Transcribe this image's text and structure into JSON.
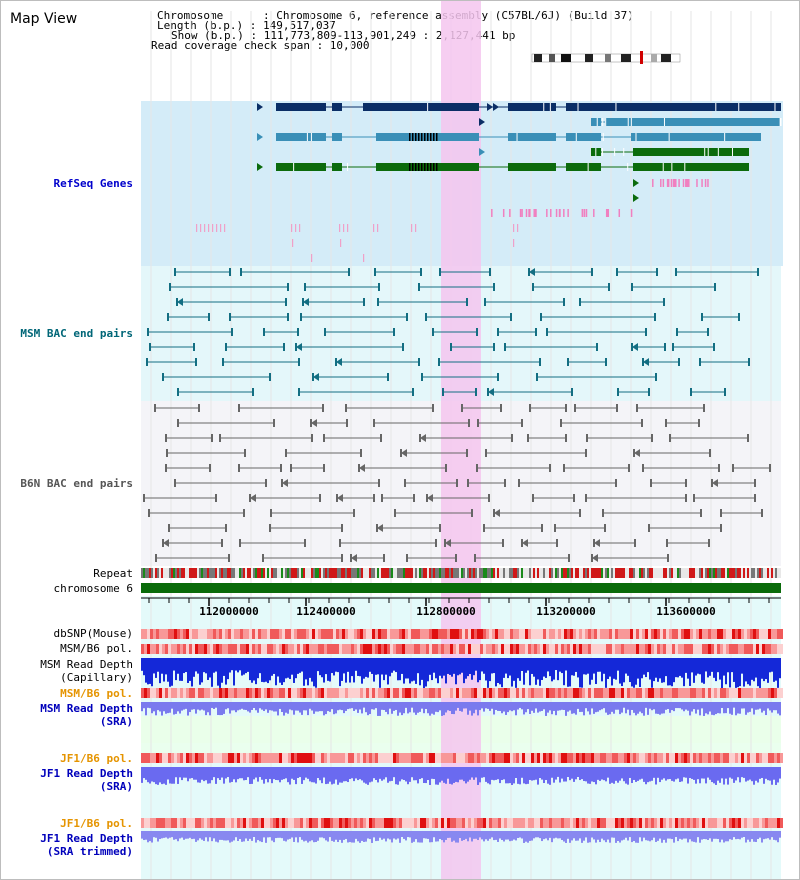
{
  "view_title": "Map View",
  "info": {
    "chromosome": "Chromosome      : Chromosome 6, reference assembly (C57BL/6J) (Build 37)",
    "length": "Length (b.p.) : 149,517,037",
    "show": "Show (b.p.) : 111,773,809-113,901,249 : 2,127,441 bp",
    "coverage": "Read coverage check span : 10,000"
  },
  "tracks": {
    "refseq": "RefSeq Genes",
    "msm_bac": "MSM BAC end pairs",
    "b6n_bac": "B6N BAC end pairs",
    "repeat": "Repeat",
    "chromosome": "chromosome 6",
    "dbsnp": "dbSNP(Mouse)",
    "msm_b6_pol_1": "MSM/B6 pol.",
    "msm_read_depth_cap_1": "MSM Read Depth",
    "msm_read_depth_cap_2": "(Capillary)",
    "msm_b6_pol_2": "MSM/B6 pol.",
    "msm_read_depth_sra_1": "MSM Read Depth",
    "msm_read_depth_sra_2": "(SRA)",
    "jf1_b6_pol_1": "JF1/B6 pol.",
    "jf1_read_depth_1": "JF1 Read Depth",
    "jf1_read_depth_2": "(SRA)",
    "jf1_b6_pol_2": "JF1/B6 pol.",
    "jf1_read_depth_trim_1": "JF1 Read Depth",
    "jf1_read_depth_trim_2": "(SRA trimmed)"
  },
  "ruler": {
    "ticks": [
      "112000000",
      "112400000",
      "112800000",
      "113200000",
      "113600000"
    ]
  },
  "colors": {
    "refseq_label": "#0000cc",
    "msm_bac_label": "#006677",
    "b6n_bac_label": "#555555",
    "pol_orange": "#e59400",
    "depth_blue": "#0000bb",
    "highlight": "#f5c6ee",
    "gene_dark": "#0b2e66",
    "gene_mid": "#3a8fb7",
    "gene_green": "#0c6b0c",
    "chrom_green": "#0a6b0a"
  }
}
